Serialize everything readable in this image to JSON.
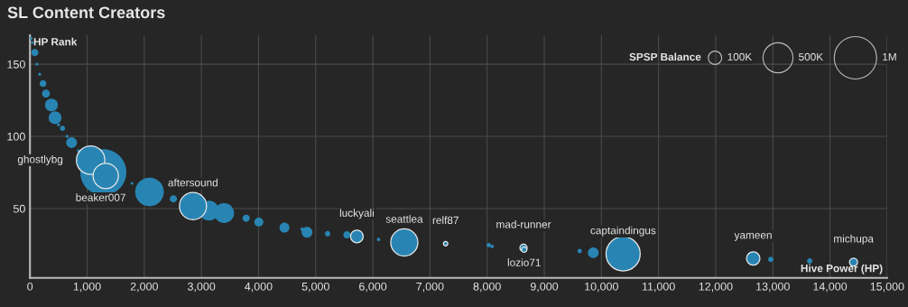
{
  "chart_data": {
    "type": "bubble",
    "title": "SL Content Creators",
    "xlabel": "Hive Power (HP)",
    "ylabel": "HP Rank",
    "xlim": [
      0,
      15000
    ],
    "ylim": [
      2,
      170
    ],
    "xticks": [
      {
        "value": 0,
        "label": "0"
      },
      {
        "value": 1000,
        "label": "1,000"
      },
      {
        "value": 2000,
        "label": "2,000"
      },
      {
        "value": 3000,
        "label": "3,000"
      },
      {
        "value": 4000,
        "label": "4,000"
      },
      {
        "value": 5000,
        "label": "5,000"
      },
      {
        "value": 6000,
        "label": "6,000"
      },
      {
        "value": 7000,
        "label": "7,000"
      },
      {
        "value": 8000,
        "label": "8,000"
      },
      {
        "value": 9000,
        "label": "9,000"
      },
      {
        "value": 10000,
        "label": "10,000"
      },
      {
        "value": 11000,
        "label": "11,000"
      },
      {
        "value": 12000,
        "label": "12,000"
      },
      {
        "value": 13000,
        "label": "13,000"
      },
      {
        "value": 14000,
        "label": "14,000"
      },
      {
        "value": 15000,
        "label": "15,000"
      }
    ],
    "yticks": [
      50,
      100,
      150
    ],
    "grid": true,
    "legend_title": "SPSP Balance",
    "size_legend": [
      {
        "value": 100000,
        "label": "100K"
      },
      {
        "value": 500000,
        "label": "500K"
      },
      {
        "value": 1000000,
        "label": "1M"
      }
    ],
    "series": [
      {
        "color": "#2885b3",
        "x": [
          20,
          40,
          85,
          122,
          170,
          228,
          280,
          376,
          439,
          500,
          570,
          650,
          729,
          850,
          1284,
          1786,
          2092,
          2510,
          3133,
          3398,
          3783,
          4005,
          4453,
          4764,
          4849,
          5209,
          5547,
          6101,
          8030,
          8089,
          9620,
          9858,
          12964,
          13645
        ],
        "values": [
          168,
          165,
          158,
          150,
          143,
          136.6,
          129.7,
          121.7,
          112.9,
          108,
          105.5,
          100,
          95.7,
          90,
          75.2,
          67.4,
          61.5,
          56.7,
          48.6,
          46.9,
          43.3,
          40.6,
          36.8,
          35.7,
          33.6,
          32.6,
          31.8,
          28.6,
          24.7,
          23.8,
          20.6,
          19.4,
          14.8,
          13.7
        ],
        "sizes": [
          5000,
          5000,
          29000,
          5000,
          5000,
          25000,
          35000,
          90000,
          90000,
          5000,
          15000,
          5000,
          65000,
          5000,
          1180000,
          4000,
          460000,
          29000,
          220000,
          220000,
          29000,
          45000,
          55000,
          7000,
          65000,
          16000,
          29000,
          7000,
          11000,
          7000,
          11000,
          65000,
          16000,
          16000
        ]
      },
      {
        "color": "#2885b3",
        "x": [
          1062,
          1326,
          2853,
          5721,
          6551,
          7274,
          8637,
          8648,
          10380,
          12657,
          14412
        ],
        "values": [
          83.5,
          72.6,
          51.7,
          30.7,
          26.5,
          25.7,
          22.8,
          21.5,
          18.6,
          15.4,
          12.9
        ],
        "sizes": [
          450000,
          355000,
          410000,
          90000,
          410000,
          11000,
          29000,
          16000,
          650000,
          100000,
          37000
        ]
      }
    ],
    "annotations": [
      {
        "text": "ghostlybg",
        "x": 1062,
        "y": 83.5
      },
      {
        "text": "beaker007",
        "x": 1326,
        "y": 72.6
      },
      {
        "text": "aftersound",
        "x": 2853,
        "y": 51.7
      },
      {
        "text": "luckyali",
        "x": 5721,
        "y": 30.7
      },
      {
        "text": "seattlea",
        "x": 6551,
        "y": 26.5
      },
      {
        "text": "relf87",
        "x": 7274,
        "y": 25.7
      },
      {
        "text": "mad-runner",
        "x": 8637,
        "y": 22.8
      },
      {
        "text": "lozio71",
        "x": 8648,
        "y": 21.5
      },
      {
        "text": "captaindingus",
        "x": 10380,
        "y": 18.6
      },
      {
        "text": "yameen",
        "x": 12657,
        "y": 15.4
      },
      {
        "text": "michupa",
        "x": 14412,
        "y": 12.9
      }
    ]
  }
}
